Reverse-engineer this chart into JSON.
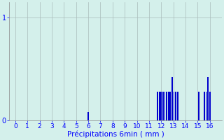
{
  "title": "",
  "xlabel": "Précipitations 6min ( mm )",
  "ylabel": "",
  "background_color": "#d4f0eb",
  "bar_color": "#0000cc",
  "grid_color": "#aabbbb",
  "ytick_labels": [
    "0",
    "1"
  ],
  "ytick_positions": [
    0,
    1
  ],
  "ylim": [
    0,
    1.15
  ],
  "xlim": [
    -0.5,
    17.0
  ],
  "xtick_positions": [
    0,
    1,
    2,
    3,
    4,
    5,
    6,
    7,
    8,
    9,
    10,
    11,
    12,
    13,
    14,
    15,
    16
  ],
  "xtick_labels": [
    "0",
    "1",
    "2",
    "3",
    "4",
    "5",
    "6",
    "7",
    "8",
    "9",
    "10",
    "11",
    "12",
    "13",
    "14",
    "15",
    "16"
  ],
  "bar_x": [
    6.0,
    11.7,
    11.85,
    12.0,
    12.15,
    12.3,
    12.45,
    12.6,
    12.75,
    12.9,
    13.05,
    13.2,
    13.35,
    15.1,
    15.55,
    15.7,
    15.85,
    16.0
  ],
  "bar_height": [
    0.08,
    0.28,
    0.28,
    0.28,
    0.28,
    0.28,
    0.28,
    0.28,
    0.28,
    0.42,
    0.28,
    0.28,
    0.28,
    0.28,
    0.28,
    0.28,
    0.42,
    0.28
  ],
  "bar_width": 0.1
}
